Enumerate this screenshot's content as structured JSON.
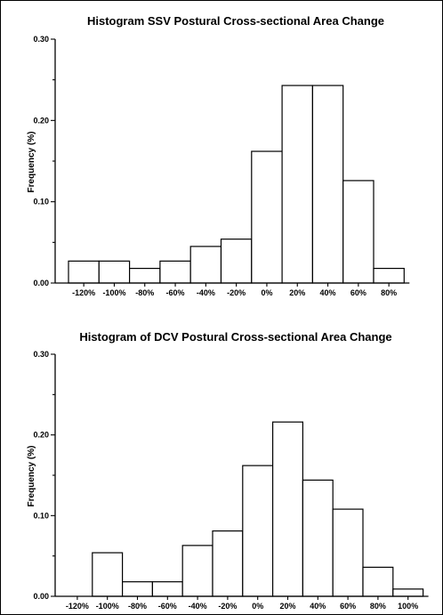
{
  "chart_data": [
    {
      "type": "bar",
      "title": "Histogram SSV Postural Cross-sectional Area Change",
      "xlabel": "",
      "ylabel": "Frequency (%)",
      "ylim": [
        0,
        0.3
      ],
      "yticks": [
        "0.00",
        "0.10",
        "0.20",
        "0.30"
      ],
      "xticks": [
        "-120%",
        "-100%",
        "-80%",
        "-60%",
        "-40%",
        "-20%",
        "0%",
        "20%",
        "40%",
        "60%",
        "80%"
      ],
      "bin_start": -130,
      "bin_width": 20,
      "values": [
        0.027,
        0.027,
        0.018,
        0.027,
        0.045,
        0.054,
        0.162,
        0.243,
        0.243,
        0.126,
        0.018
      ],
      "grid": false,
      "bar_fill": "#ffffff",
      "bar_stroke": "#000000"
    },
    {
      "type": "bar",
      "title": "Histogram of DCV Postural Cross-sectional Area Change",
      "xlabel": "",
      "ylabel": "Frequency (%)",
      "ylim": [
        0,
        0.3
      ],
      "yticks": [
        "0.00",
        "0.10",
        "0.20",
        "0.30"
      ],
      "xticks": [
        "-120%",
        "-100%",
        "-80%",
        "-60%",
        "-40%",
        "-20%",
        "0%",
        "20%",
        "40%",
        "60%",
        "80%",
        "100%"
      ],
      "bin_start": -130,
      "bin_width": 20,
      "values": [
        0,
        0.054,
        0.018,
        0.018,
        0.063,
        0.081,
        0.162,
        0.216,
        0.144,
        0.108,
        0.036,
        0.009
      ],
      "grid": false,
      "bar_fill": "#ffffff",
      "bar_stroke": "#000000"
    }
  ]
}
